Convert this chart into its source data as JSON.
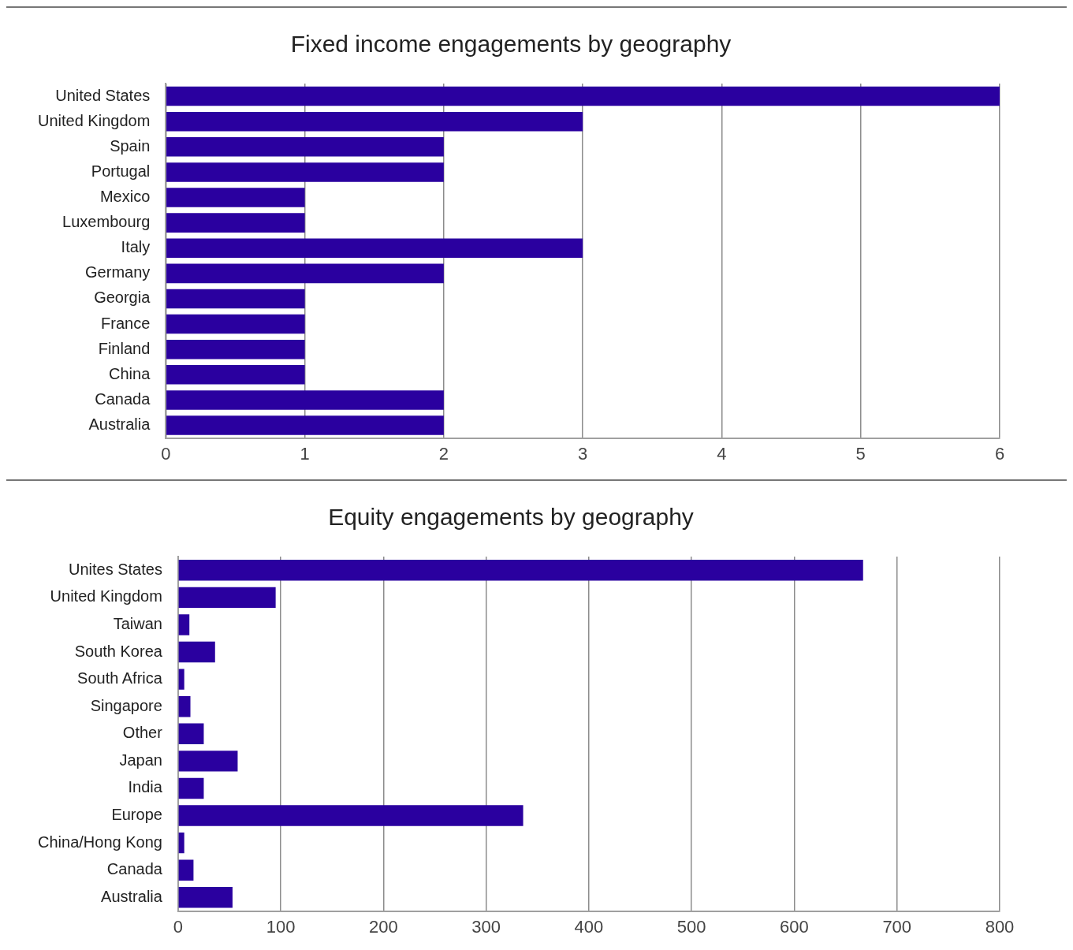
{
  "chart_data": [
    {
      "type": "bar",
      "orientation": "horizontal",
      "title": "Fixed income engagements by geography",
      "categories": [
        "United States",
        "United Kingdom",
        "Spain",
        "Portugal",
        "Mexico",
        "Luxembourg",
        "Italy",
        "Germany",
        "Georgia",
        "France",
        "Finland",
        "China",
        "Canada",
        "Australia"
      ],
      "values": [
        6,
        3,
        2,
        2,
        1,
        1,
        3,
        2,
        1,
        1,
        1,
        1,
        2,
        2
      ],
      "color": "#2a009f",
      "xlim": [
        0,
        6
      ],
      "xticks": [
        0,
        1,
        2,
        3,
        4,
        5,
        6
      ],
      "grid": "x",
      "legend": false
    },
    {
      "type": "bar",
      "orientation": "horizontal",
      "title": "Equity engagements by geography",
      "categories": [
        "Unites States",
        "United Kingdom",
        "Taiwan",
        "South Korea",
        "South Africa",
        "Singapore",
        "Other",
        "Japan",
        "India",
        "Europe",
        "China/Hong Kong",
        "Canada",
        "Australia"
      ],
      "values": [
        667,
        95,
        11,
        36,
        6,
        12,
        25,
        58,
        25,
        336,
        6,
        15,
        53
      ],
      "color": "#2a009f",
      "xlim": [
        0,
        800
      ],
      "xticks": [
        0,
        100,
        200,
        300,
        400,
        500,
        600,
        700,
        800
      ],
      "grid": "x",
      "legend": false
    }
  ]
}
